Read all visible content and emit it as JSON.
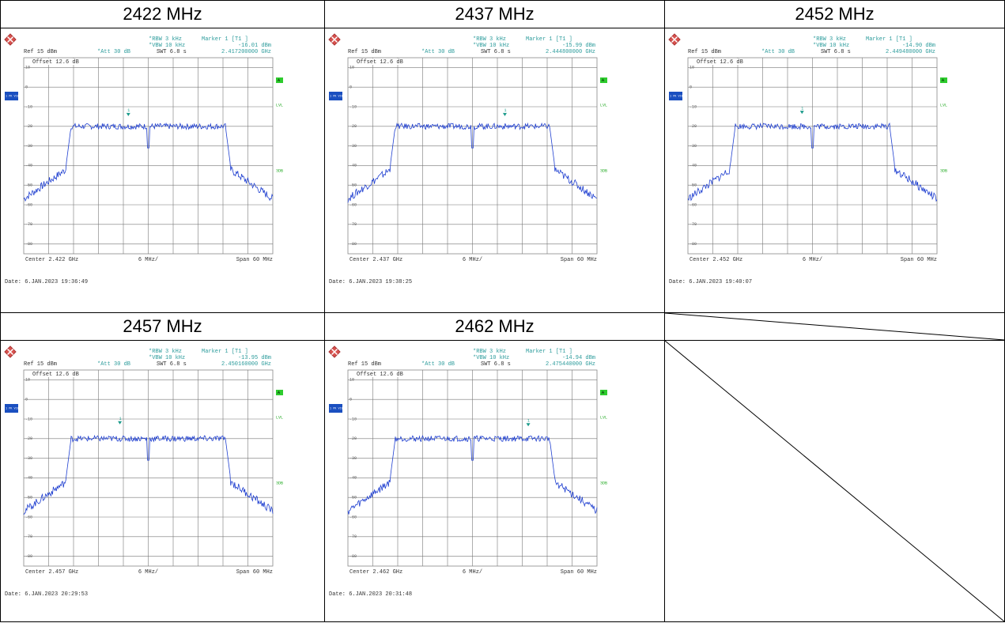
{
  "table": {
    "headers": [
      "2422 MHz",
      "2437 MHz",
      "2452 MHz",
      "2457 MHz",
      "2462 MHz"
    ],
    "plots": [
      {
        "rbw": "*RBW 3 kHz",
        "vbw": "*VBW 10 kHz",
        "marker": "Marker 1 [T1 ]",
        "marker_level": "-16.01 dBm",
        "marker_freq": "2.417200000 GHz",
        "ref": "Ref 15 dBm",
        "att": "*Att 30 dB",
        "swt": "SWT 6.8 s",
        "offset": "Offset 12.6 dB",
        "marker_num": "1",
        "trace_label": "1 PK VIEW",
        "flags": [
          "A",
          "LVL",
          "3DB"
        ],
        "y_labels": [
          "10",
          "0",
          "-10",
          "-20",
          "-30",
          "-40",
          "-50",
          "-60",
          "-70",
          "-80"
        ],
        "center": "Center 2.422 GHz",
        "div": "6 MHz/",
        "span": "Span 60 MHz",
        "date": "Date: 6.JAN.2023 19:36:49"
      },
      {
        "rbw": "*RBW 3 kHz",
        "vbw": "*VBW 10 kHz",
        "marker": "Marker 1 [T1 ]",
        "marker_level": "-15.99 dBm",
        "marker_freq": "2.444800000 GHz",
        "ref": "Ref 15 dBm",
        "att": "*Att 30 dB",
        "swt": "SWT 6.8 s",
        "offset": "Offset 12.6 dB",
        "marker_num": "1",
        "trace_label": "1 PK VIEW",
        "flags": [
          "A",
          "LVL",
          "3DB"
        ],
        "y_labels": [
          "10",
          "0",
          "-10",
          "-20",
          "-30",
          "-40",
          "-50",
          "-60",
          "-70",
          "-80"
        ],
        "center": "Center 2.437 GHz",
        "div": "6 MHz/",
        "span": "Span 60 MHz",
        "date": "Date: 6.JAN.2023 19:38:25"
      },
      {
        "rbw": "*RBW 3 kHz",
        "vbw": "*VBW 10 kHz",
        "marker": "Marker 1 [T1 ]",
        "marker_level": "-14.90 dBm",
        "marker_freq": "2.449480000 GHz",
        "ref": "Ref 15 dBm",
        "att": "*Att 30 dB",
        "swt": "SWT 6.8 s",
        "offset": "Offset 12.6 dB",
        "marker_num": "1",
        "trace_label": "1 PK VIEW",
        "flags": [
          "A",
          "LVL",
          "3DB"
        ],
        "y_labels": [
          "10",
          "0",
          "-10",
          "-20",
          "-30",
          "-40",
          "-50",
          "-60",
          "-70",
          "-80"
        ],
        "center": "Center 2.452 GHz",
        "div": "6 MHz/",
        "span": "Span 60 MHz",
        "date": "Date: 6.JAN.2023 19:40:07"
      },
      {
        "rbw": "*RBW 3 kHz",
        "vbw": "*VBW 10 kHz",
        "marker": "Marker 1 [T1 ]",
        "marker_level": "-13.95 dBm",
        "marker_freq": "2.450160000 GHz",
        "ref": "Ref 15 dBm",
        "att": "*Att 30 dB",
        "swt": "SWT 6.8 s",
        "offset": "Offset 12.6 dB",
        "marker_num": "1",
        "trace_label": "1 PK VIEW",
        "flags": [
          "A",
          "LVL",
          "3DB"
        ],
        "y_labels": [
          "10",
          "0",
          "-10",
          "-20",
          "-30",
          "-40",
          "-50",
          "-60",
          "-70",
          "-80"
        ],
        "center": "Center 2.457 GHz",
        "div": "6 MHz/",
        "span": "Span 60 MHz",
        "date": "Date: 6.JAN.2023 20:29:53"
      },
      {
        "rbw": "*RBW 3 kHz",
        "vbw": "*VBW 10 kHz",
        "marker": "Marker 1 [T1 ]",
        "marker_level": "-14.94 dBm",
        "marker_freq": "2.475440000 GHz",
        "ref": "Ref 15 dBm",
        "att": "*Att 30 dB",
        "swt": "SWT 6.8 s",
        "offset": "Offset 12.6 dB",
        "marker_num": "1",
        "trace_label": "1 PK VIEW",
        "flags": [
          "A",
          "LVL",
          "3DB"
        ],
        "y_labels": [
          "10",
          "0",
          "-10",
          "-20",
          "-30",
          "-40",
          "-50",
          "-60",
          "-70",
          "-80"
        ],
        "center": "Center 2.462 GHz",
        "div": "6 MHz/",
        "span": "Span 60 MHz",
        "date": "Date: 6.JAN.2023 20:31:48"
      }
    ]
  }
}
